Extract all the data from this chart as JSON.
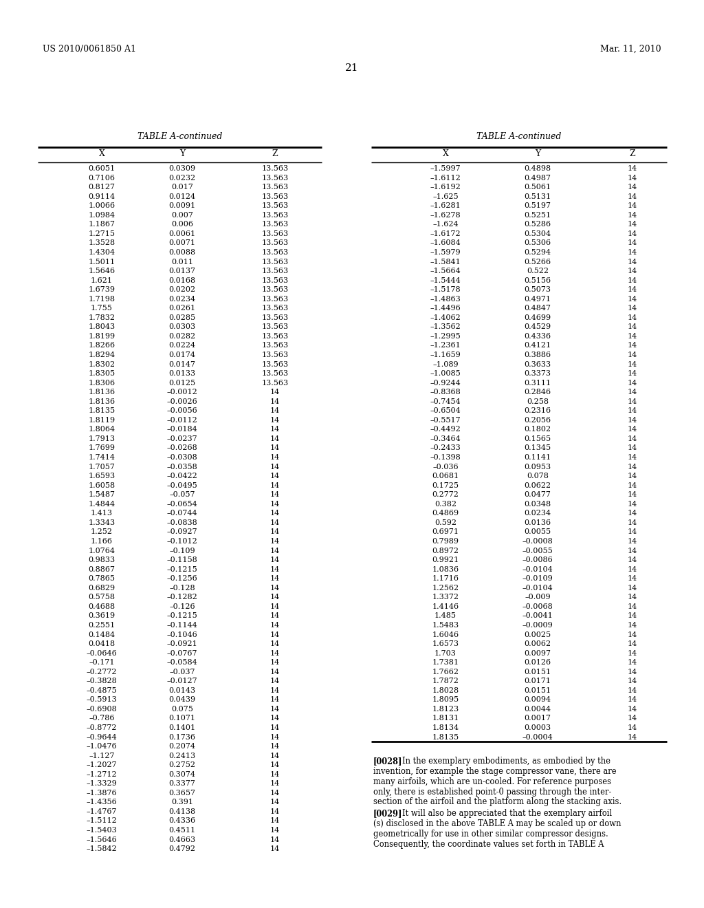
{
  "header_left": "US 2010/0061850 A1",
  "header_right": "Mar. 11, 2010",
  "page_number": "21",
  "table_title": "TABLE A-continued",
  "col_headers": [
    "X",
    "Y",
    "Z"
  ],
  "left_table_data": [
    [
      "0.6051",
      "0.0309",
      "13.563"
    ],
    [
      "0.7106",
      "0.0232",
      "13.563"
    ],
    [
      "0.8127",
      "0.017",
      "13.563"
    ],
    [
      "0.9114",
      "0.0124",
      "13.563"
    ],
    [
      "1.0066",
      "0.0091",
      "13.563"
    ],
    [
      "1.0984",
      "0.007",
      "13.563"
    ],
    [
      "1.1867",
      "0.006",
      "13.563"
    ],
    [
      "1.2715",
      "0.0061",
      "13.563"
    ],
    [
      "1.3528",
      "0.0071",
      "13.563"
    ],
    [
      "1.4304",
      "0.0088",
      "13.563"
    ],
    [
      "1.5011",
      "0.011",
      "13.563"
    ],
    [
      "1.5646",
      "0.0137",
      "13.563"
    ],
    [
      "1.621",
      "0.0168",
      "13.563"
    ],
    [
      "1.6739",
      "0.0202",
      "13.563"
    ],
    [
      "1.7198",
      "0.0234",
      "13.563"
    ],
    [
      "1.755",
      "0.0261",
      "13.563"
    ],
    [
      "1.7832",
      "0.0285",
      "13.563"
    ],
    [
      "1.8043",
      "0.0303",
      "13.563"
    ],
    [
      "1.8199",
      "0.0282",
      "13.563"
    ],
    [
      "1.8266",
      "0.0224",
      "13.563"
    ],
    [
      "1.8294",
      "0.0174",
      "13.563"
    ],
    [
      "1.8302",
      "0.0147",
      "13.563"
    ],
    [
      "1.8305",
      "0.0133",
      "13.563"
    ],
    [
      "1.8306",
      "0.0125",
      "13.563"
    ],
    [
      "1.8136",
      "–0.0012",
      "14"
    ],
    [
      "1.8136",
      "–0.0026",
      "14"
    ],
    [
      "1.8135",
      "–0.0056",
      "14"
    ],
    [
      "1.8119",
      "–0.0112",
      "14"
    ],
    [
      "1.8064",
      "–0.0184",
      "14"
    ],
    [
      "1.7913",
      "–0.0237",
      "14"
    ],
    [
      "1.7699",
      "–0.0268",
      "14"
    ],
    [
      "1.7414",
      "–0.0308",
      "14"
    ],
    [
      "1.7057",
      "–0.0358",
      "14"
    ],
    [
      "1.6593",
      "–0.0422",
      "14"
    ],
    [
      "1.6058",
      "–0.0495",
      "14"
    ],
    [
      "1.5487",
      "–0.057",
      "14"
    ],
    [
      "1.4844",
      "–0.0654",
      "14"
    ],
    [
      "1.413",
      "–0.0744",
      "14"
    ],
    [
      "1.3343",
      "–0.0838",
      "14"
    ],
    [
      "1.252",
      "–0.0927",
      "14"
    ],
    [
      "1.166",
      "–0.1012",
      "14"
    ],
    [
      "1.0764",
      "–0.109",
      "14"
    ],
    [
      "0.9833",
      "–0.1158",
      "14"
    ],
    [
      "0.8867",
      "–0.1215",
      "14"
    ],
    [
      "0.7865",
      "–0.1256",
      "14"
    ],
    [
      "0.6829",
      "–0.128",
      "14"
    ],
    [
      "0.5758",
      "–0.1282",
      "14"
    ],
    [
      "0.4688",
      "–0.126",
      "14"
    ],
    [
      "0.3619",
      "–0.1215",
      "14"
    ],
    [
      "0.2551",
      "–0.1144",
      "14"
    ],
    [
      "0.1484",
      "–0.1046",
      "14"
    ],
    [
      "0.0418",
      "–0.0921",
      "14"
    ],
    [
      "–0.0646",
      "–0.0767",
      "14"
    ],
    [
      "–0.171",
      "–0.0584",
      "14"
    ],
    [
      "–0.2772",
      "–0.037",
      "14"
    ],
    [
      "–0.3828",
      "–0.0127",
      "14"
    ],
    [
      "–0.4875",
      "0.0143",
      "14"
    ],
    [
      "–0.5913",
      "0.0439",
      "14"
    ],
    [
      "–0.6908",
      "0.075",
      "14"
    ],
    [
      "–0.786",
      "0.1071",
      "14"
    ],
    [
      "–0.8772",
      "0.1401",
      "14"
    ],
    [
      "–0.9644",
      "0.1736",
      "14"
    ],
    [
      "–1.0476",
      "0.2074",
      "14"
    ],
    [
      "–1.127",
      "0.2413",
      "14"
    ],
    [
      "–1.2027",
      "0.2752",
      "14"
    ],
    [
      "–1.2712",
      "0.3074",
      "14"
    ],
    [
      "–1.3329",
      "0.3377",
      "14"
    ],
    [
      "–1.3876",
      "0.3657",
      "14"
    ],
    [
      "–1.4356",
      "0.391",
      "14"
    ],
    [
      "–1.4767",
      "0.4138",
      "14"
    ],
    [
      "–1.5112",
      "0.4336",
      "14"
    ],
    [
      "–1.5403",
      "0.4511",
      "14"
    ],
    [
      "–1.5646",
      "0.4663",
      "14"
    ],
    [
      "–1.5842",
      "0.4792",
      "14"
    ]
  ],
  "right_table_data": [
    [
      "–1.5997",
      "0.4898",
      "14"
    ],
    [
      "–1.6112",
      "0.4987",
      "14"
    ],
    [
      "–1.6192",
      "0.5061",
      "14"
    ],
    [
      "–1.625",
      "0.5131",
      "14"
    ],
    [
      "–1.6281",
      "0.5197",
      "14"
    ],
    [
      "–1.6278",
      "0.5251",
      "14"
    ],
    [
      "–1.624",
      "0.5286",
      "14"
    ],
    [
      "–1.6172",
      "0.5304",
      "14"
    ],
    [
      "–1.6084",
      "0.5306",
      "14"
    ],
    [
      "–1.5979",
      "0.5294",
      "14"
    ],
    [
      "–1.5841",
      "0.5266",
      "14"
    ],
    [
      "–1.5664",
      "0.522",
      "14"
    ],
    [
      "–1.5444",
      "0.5156",
      "14"
    ],
    [
      "–1.5178",
      "0.5073",
      "14"
    ],
    [
      "–1.4863",
      "0.4971",
      "14"
    ],
    [
      "–1.4496",
      "0.4847",
      "14"
    ],
    [
      "–1.4062",
      "0.4699",
      "14"
    ],
    [
      "–1.3562",
      "0.4529",
      "14"
    ],
    [
      "–1.2995",
      "0.4336",
      "14"
    ],
    [
      "–1.2361",
      "0.4121",
      "14"
    ],
    [
      "–1.1659",
      "0.3886",
      "14"
    ],
    [
      "–1.089",
      "0.3633",
      "14"
    ],
    [
      "–1.0085",
      "0.3373",
      "14"
    ],
    [
      "–0.9244",
      "0.3111",
      "14"
    ],
    [
      "–0.8368",
      "0.2846",
      "14"
    ],
    [
      "–0.7454",
      "0.258",
      "14"
    ],
    [
      "–0.6504",
      "0.2316",
      "14"
    ],
    [
      "–0.5517",
      "0.2056",
      "14"
    ],
    [
      "–0.4492",
      "0.1802",
      "14"
    ],
    [
      "–0.3464",
      "0.1565",
      "14"
    ],
    [
      "–0.2433",
      "0.1345",
      "14"
    ],
    [
      "–0.1398",
      "0.1141",
      "14"
    ],
    [
      "–0.036",
      "0.0953",
      "14"
    ],
    [
      "0.0681",
      "0.078",
      "14"
    ],
    [
      "0.1725",
      "0.0622",
      "14"
    ],
    [
      "0.2772",
      "0.0477",
      "14"
    ],
    [
      "0.382",
      "0.0348",
      "14"
    ],
    [
      "0.4869",
      "0.0234",
      "14"
    ],
    [
      "0.592",
      "0.0136",
      "14"
    ],
    [
      "0.6971",
      "0.0055",
      "14"
    ],
    [
      "0.7989",
      "–0.0008",
      "14"
    ],
    [
      "0.8972",
      "–0.0055",
      "14"
    ],
    [
      "0.9921",
      "–0.0086",
      "14"
    ],
    [
      "1.0836",
      "–0.0104",
      "14"
    ],
    [
      "1.1716",
      "–0.0109",
      "14"
    ],
    [
      "1.2562",
      "–0.0104",
      "14"
    ],
    [
      "1.3372",
      "–0.009",
      "14"
    ],
    [
      "1.4146",
      "–0.0068",
      "14"
    ],
    [
      "1.485",
      "–0.0041",
      "14"
    ],
    [
      "1.5483",
      "–0.0009",
      "14"
    ],
    [
      "1.6046",
      "0.0025",
      "14"
    ],
    [
      "1.6573",
      "0.0062",
      "14"
    ],
    [
      "1.703",
      "0.0097",
      "14"
    ],
    [
      "1.7381",
      "0.0126",
      "14"
    ],
    [
      "1.7662",
      "0.0151",
      "14"
    ],
    [
      "1.7872",
      "0.0171",
      "14"
    ],
    [
      "1.8028",
      "0.0151",
      "14"
    ],
    [
      "1.8095",
      "0.0094",
      "14"
    ],
    [
      "1.8123",
      "0.0044",
      "14"
    ],
    [
      "1.8131",
      "0.0017",
      "14"
    ],
    [
      "1.8134",
      "0.0003",
      "14"
    ],
    [
      "1.8135",
      "–0.0004",
      "14"
    ]
  ],
  "p28_lines": [
    "[0028]    In the exemplary embodiments, as embodied by the",
    "invention, for example the stage compressor vane, there are",
    "many airfoils, which are un-cooled. For reference purposes",
    "only, there is established point-0 passing through the inter-",
    "section of the airfoil and the platform along the stacking axis."
  ],
  "p29_lines": [
    "[0029]    It will also be appreciated that the exemplary airfoil",
    "(s) disclosed in the above TABLE A may be scaled up or down",
    "geometrically for use in other similar compressor designs.",
    "Consequently, the coordinate values set forth in TABLE A"
  ]
}
